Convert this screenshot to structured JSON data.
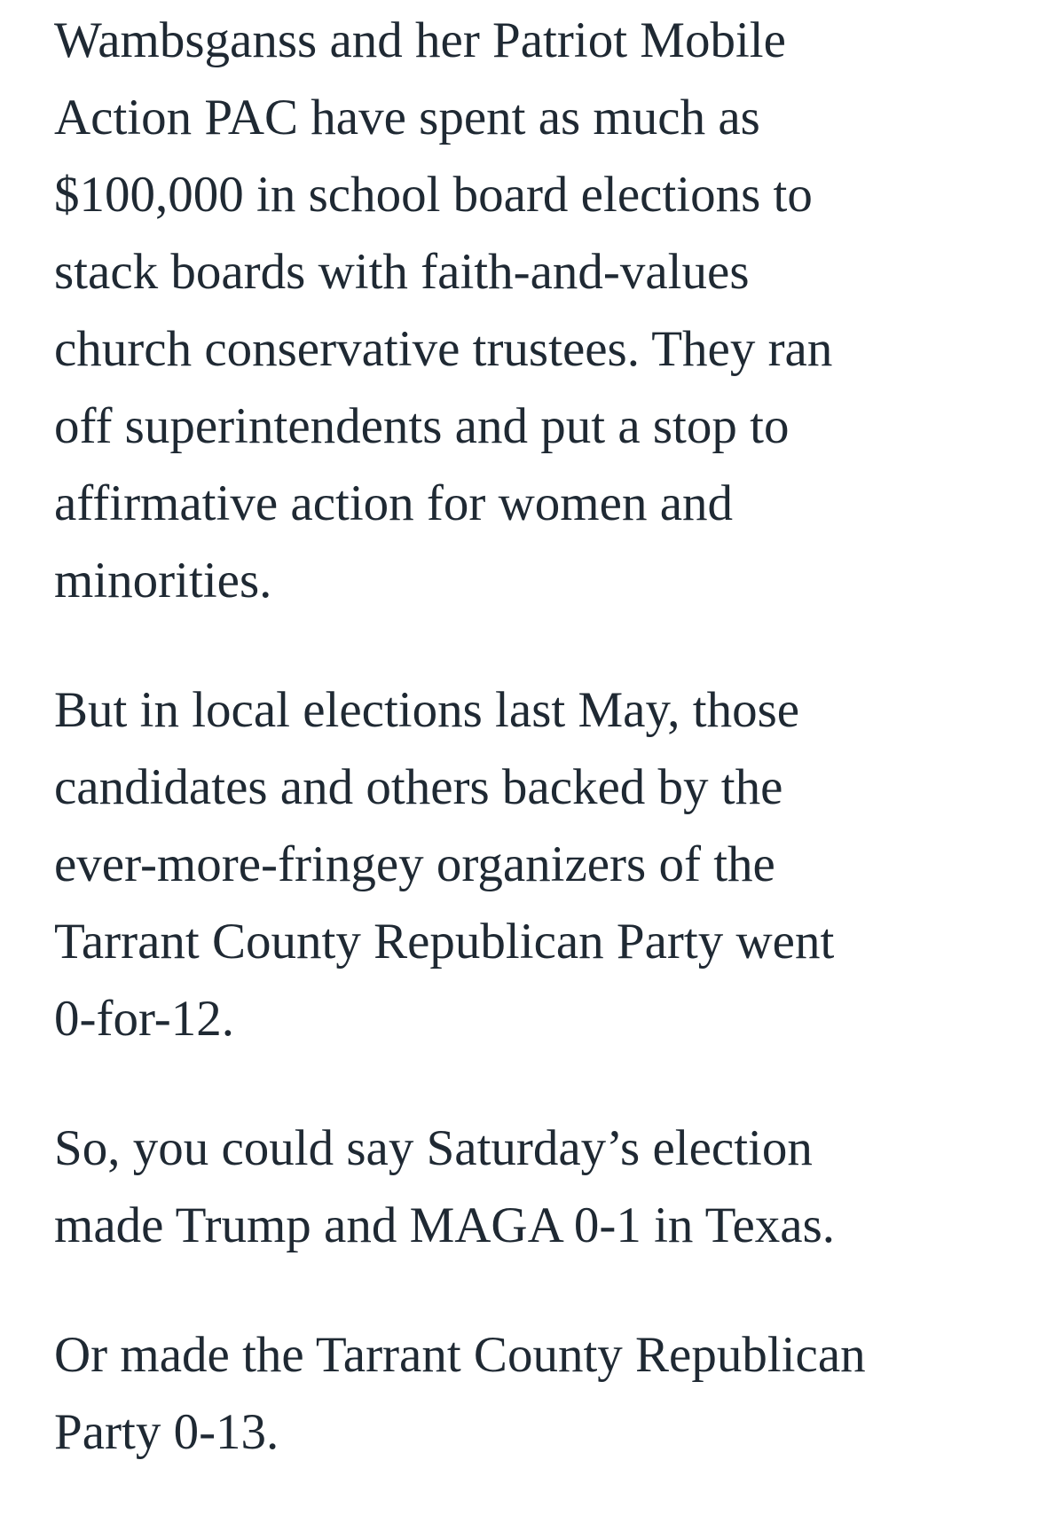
{
  "article": {
    "paragraphs": [
      {
        "lines": [
          "Wambsganss and her Patriot Mobile",
          "Action PAC have spent as much as",
          "$100,000 in school board elections to",
          "stack boards with faith-and-values",
          "church conservative trustees. They ran",
          "off superintendents and put a stop to",
          "affirmative action for women and",
          "minorities."
        ]
      },
      {
        "lines": [
          "But in local elections last May, those",
          "candidates and others backed by the",
          "ever-more-fringey organizers of the",
          "Tarrant County Republican Party went",
          "0-for-12."
        ]
      },
      {
        "lines": [
          "So, you could say Saturday’s election",
          "made Trump and MAGA 0-1 in Texas."
        ]
      },
      {
        "lines": [
          "Or made the Tarrant County Republican",
          "Party 0-13."
        ]
      }
    ],
    "text_color": "#1f2933"
  }
}
